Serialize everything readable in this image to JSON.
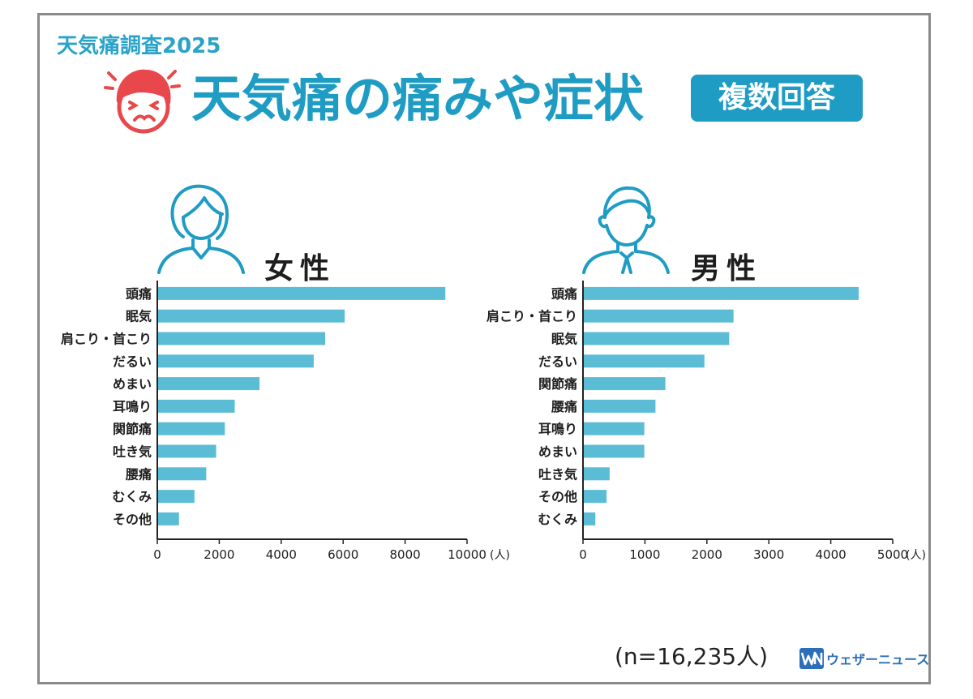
{
  "header": {
    "survey_label": "天気痛調査2025",
    "title": "天気痛の痛みや症状",
    "badge": "複数回答"
  },
  "colors": {
    "accent": "#1f9cc4",
    "bar": "#5bbcd6",
    "face": "#e8484c",
    "brand": "#2b6fb8"
  },
  "footer": {
    "sample_size": "(n=16,235人)",
    "brand_name": "ウェザーニュース"
  },
  "chart_data": [
    {
      "type": "bar",
      "orientation": "horizontal",
      "title": "女性",
      "categories": [
        "頭痛",
        "眠気",
        "肩こり・首こり",
        "だるい",
        "めまい",
        "耳鳴り",
        "関節痛",
        "吐き気",
        "腰痛",
        "むくみ",
        "その他"
      ],
      "values": [
        9300,
        6050,
        5420,
        5050,
        3300,
        2500,
        2180,
        1900,
        1580,
        1200,
        700
      ],
      "xlim": [
        0,
        10000
      ],
      "xticks": [
        0,
        2000,
        4000,
        6000,
        8000,
        10000
      ],
      "xtick_labels": [
        "0",
        "2000",
        "4000",
        "6000",
        "8000",
        "10000"
      ],
      "unit": "(人)",
      "icon": "female-person-icon"
    },
    {
      "type": "bar",
      "orientation": "horizontal",
      "title": "男性",
      "categories": [
        "頭痛",
        "肩こり・首こり",
        "眠気",
        "だるい",
        "関節痛",
        "腰痛",
        "耳鳴り",
        "めまい",
        "吐き気",
        "その他",
        "むくみ"
      ],
      "values": [
        4450,
        2430,
        2360,
        1960,
        1330,
        1170,
        990,
        990,
        430,
        380,
        200
      ],
      "xlim": [
        0,
        5000
      ],
      "xticks": [
        0,
        1000,
        2000,
        3000,
        4000,
        5000
      ],
      "xtick_labels": [
        "0",
        "1000",
        "2000",
        "3000",
        "4000",
        "5000"
      ],
      "unit": "(人)",
      "icon": "male-person-icon"
    }
  ]
}
